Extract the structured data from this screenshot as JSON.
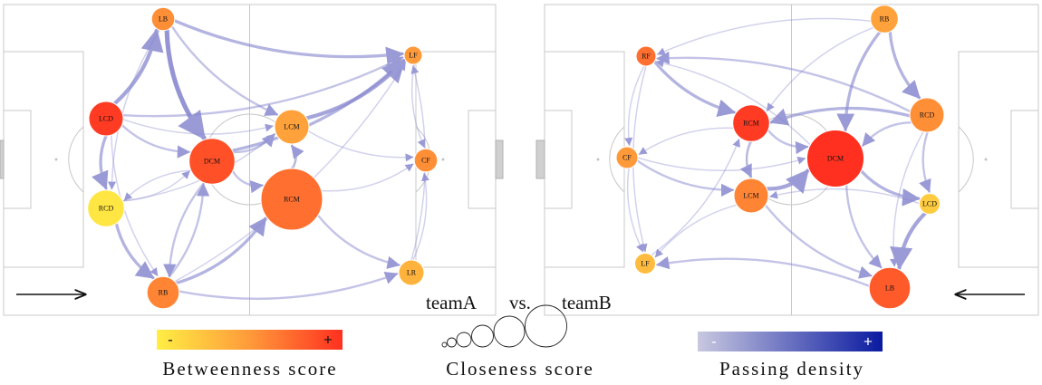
{
  "colors": {
    "betweenness_low": "#ffee44",
    "betweenness_mid": "#ff9a3a",
    "betweenness_high": "#ff3020",
    "density_low": "#c8c8e0",
    "density_high": "#0a1aa0",
    "pitch_lines": "#c8c8c8",
    "edge": "#8a8ad0"
  },
  "teams": [
    {
      "name": "teamA",
      "nodes": [
        {
          "id": "LB",
          "label": "LB",
          "betweenness": 0.55,
          "closeness": 0.15
        },
        {
          "id": "LF",
          "label": "LF",
          "betweenness": 0.5,
          "closeness": 0.04
        },
        {
          "id": "LCD",
          "label": "LCD",
          "betweenness": 0.95,
          "closeness": 0.4
        },
        {
          "id": "LCM",
          "label": "LCM",
          "betweenness": 0.45,
          "closeness": 0.4
        },
        {
          "id": "DCM",
          "label": "DCM",
          "betweenness": 0.85,
          "closeness": 0.65
        },
        {
          "id": "CF",
          "label": "CF",
          "betweenness": 0.55,
          "closeness": 0.15
        },
        {
          "id": "RCD",
          "label": "RCD",
          "betweenness": 0.05,
          "closeness": 0.45
        },
        {
          "id": "RCM",
          "label": "RCM",
          "betweenness": 0.7,
          "closeness": 1.0
        },
        {
          "id": "RB",
          "label": "RB",
          "betweenness": 0.6,
          "closeness": 0.35
        },
        {
          "id": "LR",
          "label": "LR",
          "betweenness": 0.35,
          "closeness": 0.2
        }
      ],
      "edges": [
        [
          "LCD",
          "LB",
          4
        ],
        [
          "LB",
          "DCM",
          5
        ],
        [
          "LB",
          "LF",
          3
        ],
        [
          "LB",
          "LCM",
          2
        ],
        [
          "LB",
          "RCD",
          1
        ],
        [
          "LCD",
          "LF",
          2
        ],
        [
          "LCD",
          "DCM",
          2
        ],
        [
          "LCD",
          "RCD",
          3
        ],
        [
          "LCD",
          "RB",
          1
        ],
        [
          "LCD",
          "LCM",
          1
        ],
        [
          "LCM",
          "LF",
          4
        ],
        [
          "DCM",
          "LF",
          3
        ],
        [
          "DCM",
          "LCM",
          2
        ],
        [
          "DCM",
          "RCM",
          2
        ],
        [
          "DCM",
          "RCD",
          1
        ],
        [
          "DCM",
          "RB",
          2
        ],
        [
          "RCD",
          "RB",
          3
        ],
        [
          "RB",
          "RCM",
          3
        ],
        [
          "RB",
          "LR",
          2
        ],
        [
          "RB",
          "LF",
          1
        ],
        [
          "RCM",
          "LR",
          2
        ],
        [
          "RCM",
          "LCM",
          2
        ],
        [
          "RCM",
          "CF",
          1
        ],
        [
          "LCM",
          "CF",
          1
        ],
        [
          "LF",
          "CF",
          1
        ],
        [
          "LR",
          "CF",
          1
        ],
        [
          "RCD",
          "DCM",
          1
        ],
        [
          "RB",
          "DCM",
          2
        ],
        [
          "LR",
          "LF",
          1
        ],
        [
          "RCD",
          "LCM",
          1
        ]
      ]
    },
    {
      "name": "teamB",
      "nodes": [
        {
          "id": "RB",
          "label": "RB",
          "betweenness": 0.45,
          "closeness": 0.25
        },
        {
          "id": "RF",
          "label": "RF",
          "betweenness": 0.7,
          "closeness": 0.08
        },
        {
          "id": "RCD",
          "label": "RCD",
          "betweenness": 0.55,
          "closeness": 0.4
        },
        {
          "id": "RCM",
          "label": "RCM",
          "betweenness": 0.95,
          "closeness": 0.45
        },
        {
          "id": "DCM",
          "label": "DCM",
          "betweenness": 1.0,
          "closeness": 0.9
        },
        {
          "id": "CF",
          "label": "CF",
          "betweenness": 0.5,
          "closeness": 0.12
        },
        {
          "id": "LCM",
          "label": "LCM",
          "betweenness": 0.6,
          "closeness": 0.4
        },
        {
          "id": "LCD",
          "label": "LCD",
          "betweenness": 0.2,
          "closeness": 0.1
        },
        {
          "id": "LF",
          "label": "LF",
          "betweenness": 0.3,
          "closeness": 0.1
        },
        {
          "id": "LB",
          "label": "LB",
          "betweenness": 0.8,
          "closeness": 0.55
        }
      ],
      "edges": [
        [
          "RB",
          "RCD",
          3
        ],
        [
          "RB",
          "DCM",
          3
        ],
        [
          "RB",
          "RF",
          1
        ],
        [
          "RB",
          "RCM",
          1
        ],
        [
          "RCD",
          "RCM",
          3
        ],
        [
          "RCD",
          "DCM",
          2
        ],
        [
          "RCD",
          "LCD",
          2
        ],
        [
          "RCD",
          "LB",
          1
        ],
        [
          "RF",
          "RCM",
          3
        ],
        [
          "RF",
          "CF",
          1
        ],
        [
          "RF",
          "LF",
          1
        ],
        [
          "RCM",
          "DCM",
          2
        ],
        [
          "RCM",
          "LCM",
          2
        ],
        [
          "RCM",
          "CF",
          1
        ],
        [
          "CF",
          "LCM",
          2
        ],
        [
          "CF",
          "LF",
          1
        ],
        [
          "LCM",
          "DCM",
          4
        ],
        [
          "LCM",
          "LB",
          2
        ],
        [
          "LCM",
          "LF",
          1
        ],
        [
          "DCM",
          "LCD",
          3
        ],
        [
          "DCM",
          "LB",
          2
        ],
        [
          "LCD",
          "LB",
          4
        ],
        [
          "LB",
          "LF",
          2
        ],
        [
          "DCM",
          "RF",
          1
        ],
        [
          "RCD",
          "RF",
          2
        ],
        [
          "LCD",
          "LCM",
          1
        ],
        [
          "CF",
          "DCM",
          1
        ],
        [
          "LF",
          "RCM",
          1
        ]
      ]
    }
  ],
  "vs_label": "vs.",
  "legends": {
    "betweenness": {
      "title": "Betweenness score",
      "minus": "-",
      "plus": "+"
    },
    "closeness": {
      "title": "Closeness score",
      "circle_count": 6
    },
    "density": {
      "title": "Passing density",
      "minus": "-",
      "plus": "+"
    }
  },
  "direction_arrows": [
    {
      "team": "teamA",
      "direction": "right"
    },
    {
      "team": "teamB",
      "direction": "left"
    }
  ]
}
